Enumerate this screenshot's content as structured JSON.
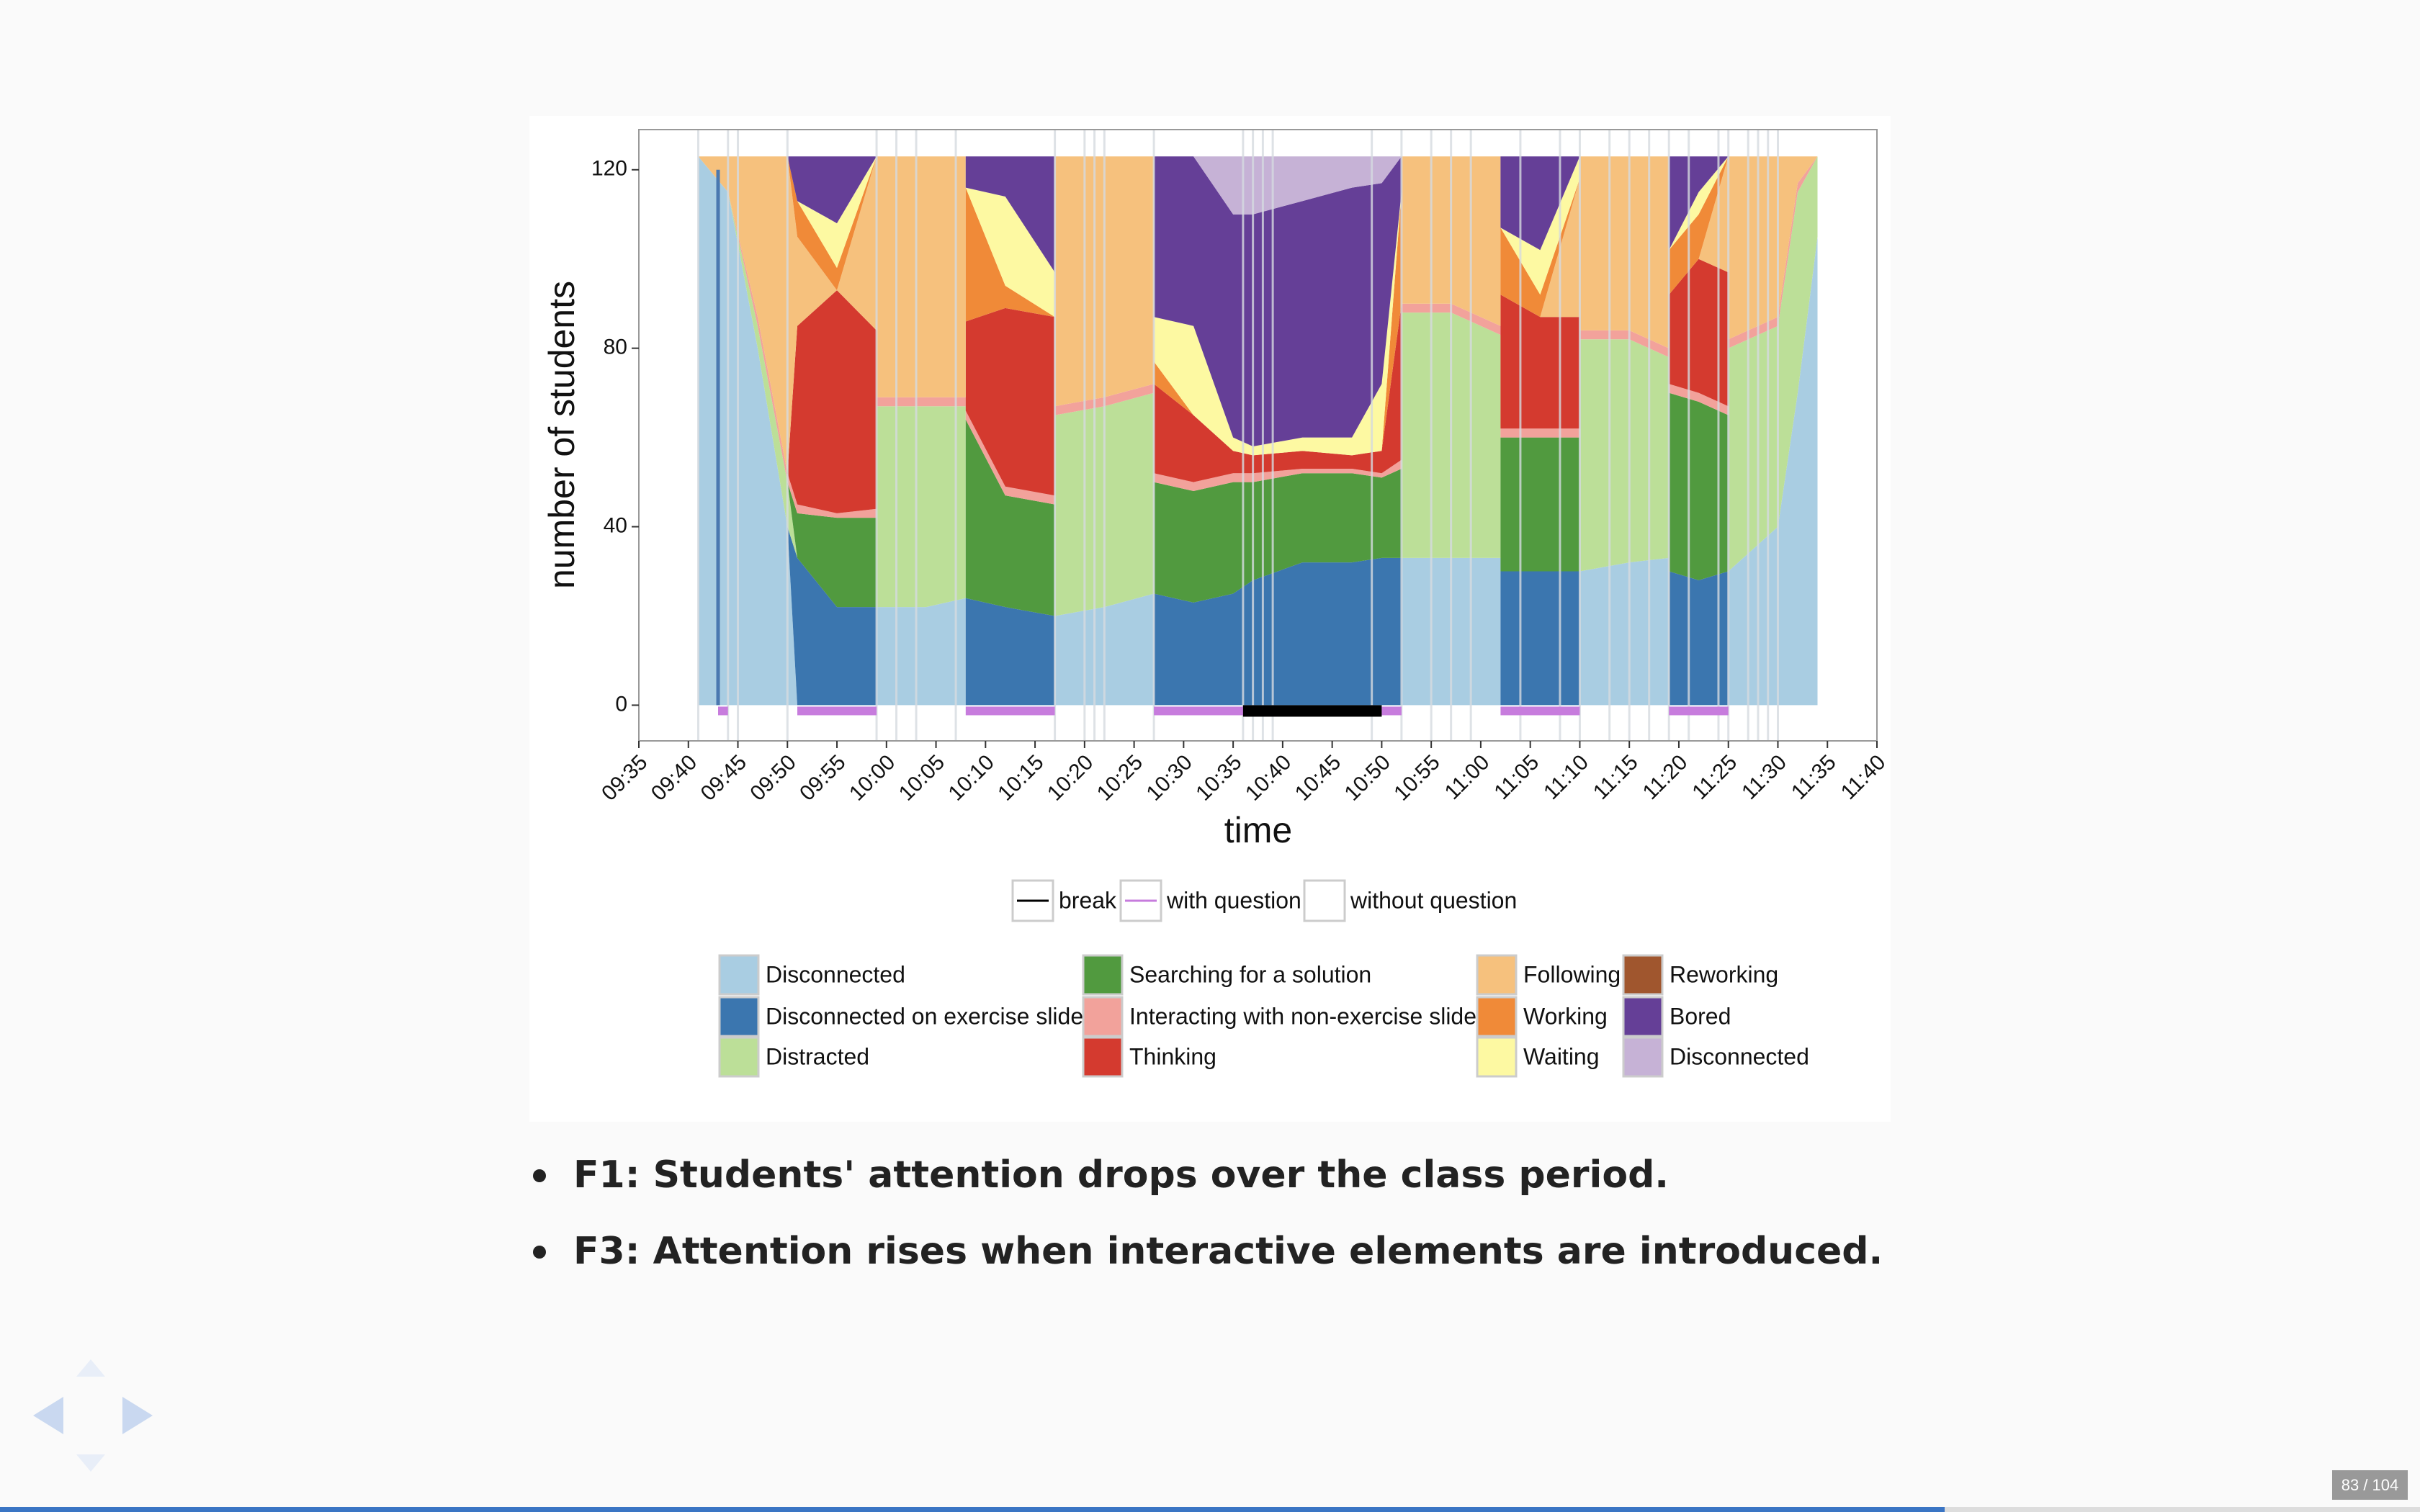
{
  "chart_data": {
    "type": "area",
    "stacked": true,
    "xlabel": "time",
    "ylabel": "number of students",
    "x": [
      "09:41",
      "09:44",
      "09:47",
      "09:50",
      "09:51",
      "09:55",
      "09:59",
      "09:59",
      "10:04",
      "10:08",
      "10:08",
      "10:12",
      "10:17",
      "10:17",
      "10:22",
      "10:27",
      "10:27",
      "10:31",
      "10:35",
      "10:37",
      "10:42",
      "10:47",
      "10:50",
      "10:52",
      "10:52",
      "10:57",
      "11:02",
      "11:02",
      "11:06",
      "11:10",
      "11:10",
      "11:15",
      "11:19",
      "11:19",
      "11:22",
      "11:25",
      "11:25",
      "11:30",
      "11:32",
      "11:34"
    ],
    "series": [
      {
        "name": "Disconnected",
        "color": "#a9cde2",
        "values": [
          123,
          115,
          80,
          40,
          0,
          0,
          0,
          22,
          22,
          24,
          0,
          0,
          0,
          20,
          22,
          25,
          0,
          0,
          0,
          0,
          0,
          0,
          0,
          0,
          33,
          33,
          33,
          0,
          0,
          0,
          30,
          32,
          33,
          0,
          0,
          0,
          30,
          40,
          70,
          105
        ]
      },
      {
        "name": "Disconnected on exercise slide",
        "color": "#3b76af",
        "values": [
          0,
          0,
          0,
          0,
          33,
          22,
          22,
          0,
          0,
          0,
          24,
          22,
          20,
          0,
          0,
          0,
          25,
          23,
          25,
          28,
          32,
          32,
          33,
          33,
          0,
          0,
          0,
          30,
          30,
          30,
          0,
          0,
          0,
          30,
          28,
          30,
          0,
          0,
          0,
          0
        ]
      },
      {
        "name": "Distracted",
        "color": "#bcdf98",
        "values": [
          0,
          0,
          5,
          10,
          0,
          0,
          0,
          45,
          45,
          43,
          0,
          0,
          0,
          45,
          45,
          45,
          0,
          0,
          0,
          0,
          0,
          0,
          0,
          0,
          55,
          55,
          50,
          0,
          0,
          0,
          52,
          50,
          45,
          0,
          0,
          0,
          50,
          45,
          45,
          18
        ]
      },
      {
        "name": "Searching for a solution",
        "color": "#519a3f",
        "values": [
          0,
          0,
          0,
          0,
          10,
          20,
          20,
          0,
          0,
          0,
          40,
          25,
          25,
          0,
          0,
          0,
          25,
          25,
          25,
          22,
          20,
          20,
          18,
          20,
          0,
          0,
          0,
          30,
          30,
          30,
          0,
          0,
          0,
          40,
          40,
          35,
          0,
          0,
          0,
          0
        ]
      },
      {
        "name": "Interacting with non-exercise slide",
        "color": "#f2a29b",
        "values": [
          0,
          0,
          2,
          2,
          2,
          1,
          2,
          2,
          2,
          2,
          2,
          2,
          2,
          2,
          2,
          2,
          2,
          2,
          2,
          2,
          1,
          1,
          1,
          2,
          2,
          2,
          2,
          2,
          2,
          2,
          2,
          2,
          2,
          2,
          2,
          2,
          2,
          2,
          2,
          0
        ]
      },
      {
        "name": "Thinking",
        "color": "#d43a2f",
        "values": [
          0,
          0,
          0,
          0,
          40,
          50,
          40,
          0,
          0,
          0,
          20,
          40,
          40,
          0,
          0,
          0,
          20,
          15,
          5,
          4,
          4,
          3,
          5,
          35,
          0,
          0,
          0,
          30,
          25,
          25,
          0,
          0,
          0,
          20,
          30,
          30,
          0,
          0,
          0,
          0
        ]
      },
      {
        "name": "Following",
        "color": "#f6c17d",
        "values": [
          0,
          8,
          36,
          71,
          20,
          0,
          39,
          54,
          54,
          54,
          0,
          0,
          0,
          56,
          54,
          51,
          0,
          0,
          0,
          0,
          0,
          0,
          0,
          0,
          33,
          33,
          38,
          0,
          0,
          31,
          39,
          39,
          43,
          0,
          0,
          26,
          41,
          36,
          6,
          0
        ]
      },
      {
        "name": "Working",
        "color": "#f08a38",
        "values": [
          0,
          0,
          0,
          0,
          8,
          5,
          0,
          0,
          0,
          0,
          30,
          5,
          0,
          0,
          0,
          0,
          5,
          0,
          0,
          0,
          0,
          0,
          0,
          25,
          0,
          0,
          0,
          15,
          5,
          0,
          0,
          0,
          0,
          10,
          10,
          0,
          0,
          0,
          0,
          0
        ]
      },
      {
        "name": "Waiting",
        "color": "#fdf9a2",
        "values": [
          0,
          0,
          0,
          0,
          0,
          10,
          0,
          0,
          0,
          0,
          0,
          20,
          10,
          0,
          0,
          0,
          10,
          20,
          3,
          2,
          3,
          4,
          15,
          0,
          0,
          0,
          0,
          0,
          10,
          5,
          0,
          0,
          0,
          0,
          5,
          0,
          0,
          0,
          0,
          0
        ]
      },
      {
        "name": "Reworking",
        "color": "#a0562e",
        "values": [
          0,
          0,
          0,
          0,
          0,
          0,
          0,
          0,
          0,
          0,
          0,
          0,
          0,
          0,
          0,
          0,
          0,
          0,
          0,
          0,
          0,
          0,
          0,
          0,
          0,
          0,
          0,
          0,
          0,
          0,
          0,
          0,
          0,
          0,
          0,
          0,
          0,
          0,
          0,
          0
        ]
      },
      {
        "name": "Bored",
        "color": "#653f97",
        "values": [
          0,
          0,
          0,
          0,
          10,
          15,
          0,
          0,
          0,
          0,
          7,
          9,
          26,
          0,
          0,
          0,
          36,
          38,
          50,
          52,
          53,
          56,
          45,
          8,
          0,
          0,
          0,
          16,
          21,
          0,
          0,
          0,
          0,
          21,
          8,
          0,
          0,
          0,
          0,
          0
        ]
      },
      {
        "name": "Disconnected",
        "color": "#c6b2d6",
        "values": [
          0,
          0,
          0,
          0,
          0,
          0,
          0,
          0,
          0,
          0,
          0,
          0,
          0,
          0,
          0,
          0,
          0,
          0,
          13,
          13,
          10,
          7,
          6,
          0,
          0,
          0,
          0,
          0,
          0,
          0,
          0,
          0,
          0,
          0,
          0,
          0,
          0,
          0,
          0,
          0
        ]
      }
    ],
    "xlim": [
      "09:35",
      "11:40"
    ],
    "xticks": [
      "09:35",
      "09:40",
      "09:45",
      "09:50",
      "09:55",
      "10:00",
      "10:05",
      "10:10",
      "10:15",
      "10:20",
      "10:25",
      "10:30",
      "10:35",
      "10:40",
      "10:45",
      "10:50",
      "10:55",
      "11:00",
      "11:05",
      "11:10",
      "11:15",
      "11:20",
      "11:25",
      "11:30",
      "11:35",
      "11:40"
    ],
    "ylim": [
      -8,
      129
    ],
    "yticks": [
      0,
      40,
      80,
      120
    ],
    "grid": false,
    "slide_changes": [
      "09:41",
      "09:44",
      "09:45",
      "09:50",
      "09:59",
      "10:01",
      "10:03",
      "10:07",
      "10:17",
      "10:20",
      "10:21",
      "10:22",
      "10:27",
      "10:36",
      "10:37",
      "10:38",
      "10:39",
      "10:49",
      "10:52",
      "10:55",
      "10:57",
      "10:59",
      "11:04",
      "11:08",
      "11:10",
      "11:13",
      "11:15",
      "11:17",
      "11:19",
      "11:21",
      "11:24",
      "11:25",
      "11:27",
      "11:28",
      "11:29",
      "11:30"
    ],
    "slide_change_color": "#d6dbe0",
    "event_line": {
      "time": "09:43",
      "color": "#4a78b0"
    },
    "question_periods": [
      [
        "09:43",
        "09:44"
      ],
      [
        "09:51",
        "09:59"
      ],
      [
        "10:08",
        "10:17"
      ],
      [
        "10:27",
        "10:36"
      ],
      [
        "10:50",
        "10:52"
      ],
      [
        "11:02",
        "11:10"
      ],
      [
        "11:19",
        "11:25"
      ]
    ],
    "breaks": [
      [
        "10:36",
        "10:50"
      ]
    ],
    "phase_legend": [
      {
        "name": "break",
        "color": "#000000"
      },
      {
        "name": "with question",
        "color": "#c77cdd"
      },
      {
        "name": "without question",
        "color": "#ffffff"
      }
    ]
  },
  "slide": {
    "bullets": [
      "F1: Students' attention drops over the class period.",
      "F3: Attention rises when interactive elements are introduced."
    ],
    "counter": "83 / 104"
  }
}
